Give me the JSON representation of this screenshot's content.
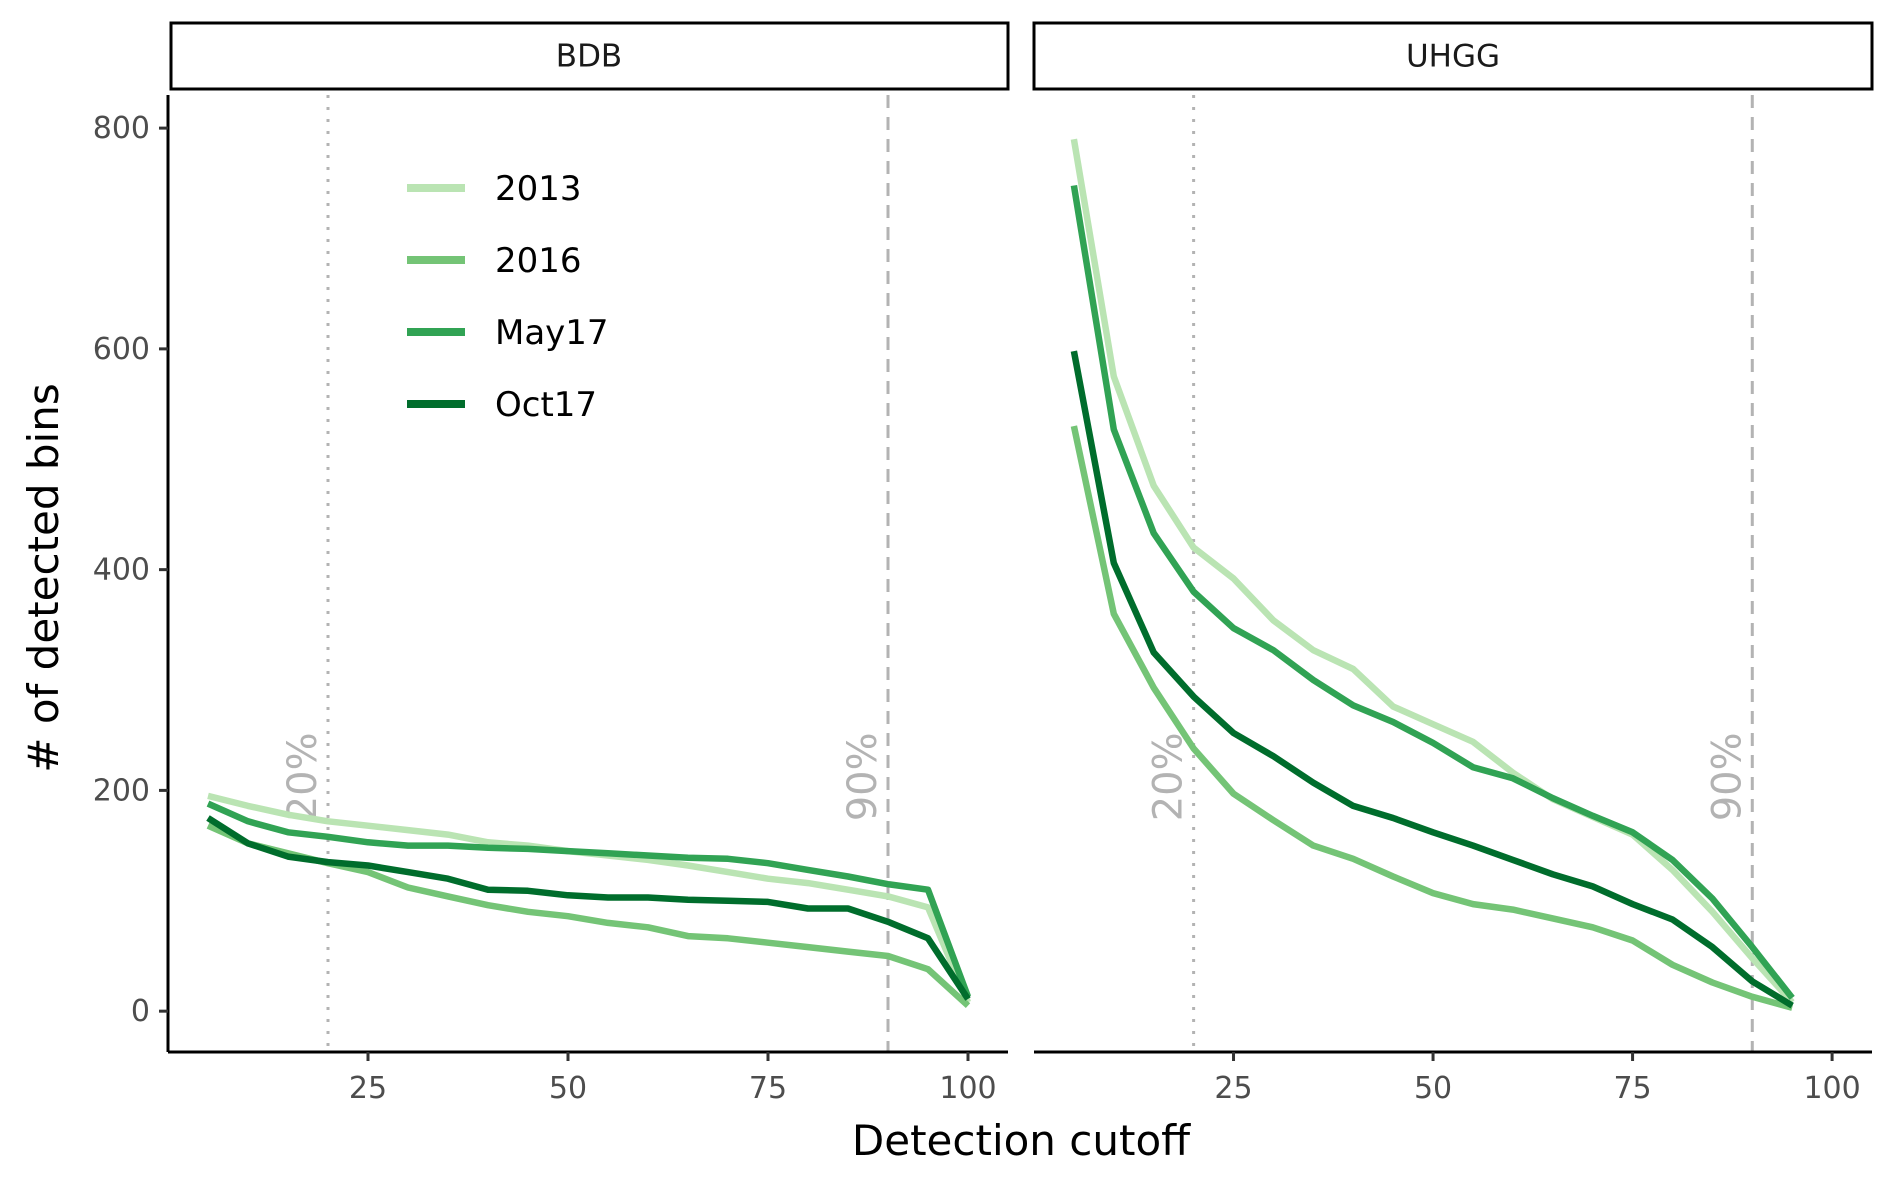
{
  "chart_data": {
    "type": "line",
    "xlabel": "Detection cutoff",
    "ylabel": "# of detected bins",
    "xlim": [
      0,
      105
    ],
    "ylim": [
      -37,
      830
    ],
    "x_ticks": [
      25,
      50,
      75,
      100
    ],
    "y_ticks": [
      0,
      200,
      400,
      600,
      800
    ],
    "grid": false,
    "legend_position": "top-left inside first panel",
    "reference_lines": [
      {
        "x": 20,
        "label": "20%",
        "style": "dotted",
        "color": "#b3b3b3"
      },
      {
        "x": 90,
        "label": "90%",
        "style": "dashed",
        "color": "#b3b3b3"
      }
    ],
    "series_styles": [
      {
        "name": "2013",
        "color": "#bae4b3"
      },
      {
        "name": "2016",
        "color": "#74c476"
      },
      {
        "name": "May17",
        "color": "#31a354"
      },
      {
        "name": "Oct17",
        "color": "#006d2c"
      }
    ],
    "panels": [
      {
        "title": "BDB",
        "x": [
          5,
          10,
          15,
          20,
          25,
          30,
          35,
          40,
          45,
          50,
          55,
          60,
          65,
          70,
          75,
          80,
          85,
          90,
          95,
          100
        ],
        "series": [
          {
            "name": "2013",
            "values": [
              195,
              186,
              178,
              172,
              168,
              164,
              160,
              153,
              150,
              145,
              141,
              137,
              132,
              126,
              120,
              116,
              110,
              104,
              94,
              8
            ]
          },
          {
            "name": "2016",
            "values": [
              168,
              152,
              143,
              134,
              126,
              112,
              104,
              96,
              90,
              86,
              80,
              76,
              68,
              66,
              62,
              58,
              54,
              50,
              38,
              5
            ]
          },
          {
            "name": "May17",
            "values": [
              188,
              172,
              162,
              158,
              153,
              150,
              150,
              148,
              147,
              145,
              143,
              141,
              139,
              138,
              134,
              128,
              122,
              115,
              110,
              13
            ]
          },
          {
            "name": "Oct17",
            "values": [
              175,
              152,
              140,
              135,
              132,
              126,
              120,
              110,
              109,
              105,
              103,
              103,
              101,
              100,
              99,
              93,
              93,
              81,
              66,
              11
            ]
          }
        ]
      },
      {
        "title": "UHGG",
        "x": [
          5,
          10,
          15,
          20,
          25,
          30,
          35,
          40,
          45,
          50,
          55,
          60,
          65,
          70,
          75,
          80,
          85,
          90,
          95
        ],
        "series": [
          {
            "name": "2013",
            "values": [
              790,
              575,
              476,
              420,
              392,
              354,
              327,
              310,
              276,
              260,
              244,
              216,
              192,
              176,
              160,
              128,
              90,
              48,
              8
            ]
          },
          {
            "name": "2016",
            "values": [
              530,
              360,
              293,
              238,
              197,
              173,
              150,
              138,
              122,
              107,
              97,
              92,
              84,
              76,
              64,
              42,
              26,
              13,
              3
            ]
          },
          {
            "name": "May17",
            "values": [
              748,
              527,
              433,
              380,
              347,
              327,
              300,
              277,
              262,
              243,
              221,
              211,
              193,
              177,
              162,
              137,
              102,
              58,
              12
            ]
          },
          {
            "name": "Oct17",
            "values": [
              598,
              406,
              325,
              285,
              252,
              231,
              207,
              186,
              175,
              162,
              150,
              137,
              124,
              113,
              97,
              83,
              58,
              27,
              5
            ]
          }
        ]
      }
    ]
  }
}
